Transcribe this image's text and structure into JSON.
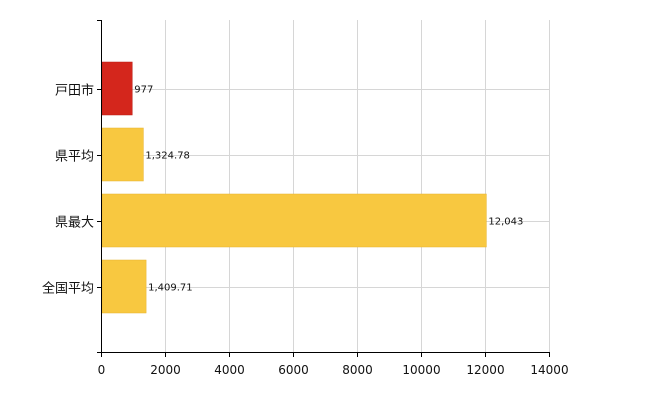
{
  "colors": {
    "highlight": "#d4261c",
    "highlight_stroke": "#b81e16",
    "default": "#f8c840",
    "default_stroke": "#e6b22e"
  },
  "chart_data": {
    "type": "bar",
    "orientation": "horizontal",
    "title": "",
    "xlabel": "",
    "ylabel": "",
    "xlim": [
      0,
      14000
    ],
    "x_ticks": [
      0,
      2000,
      4000,
      6000,
      8000,
      10000,
      12000,
      14000
    ],
    "grid": true,
    "categories": [
      "戸田市",
      "県平均",
      "県最大",
      "全国平均"
    ],
    "values": [
      977,
      1324.78,
      12043,
      1409.71
    ],
    "value_labels": [
      "977",
      "1,324.78",
      "12,043",
      "1,409.71"
    ],
    "bar_colors": [
      "highlight",
      "default",
      "default",
      "default"
    ]
  }
}
